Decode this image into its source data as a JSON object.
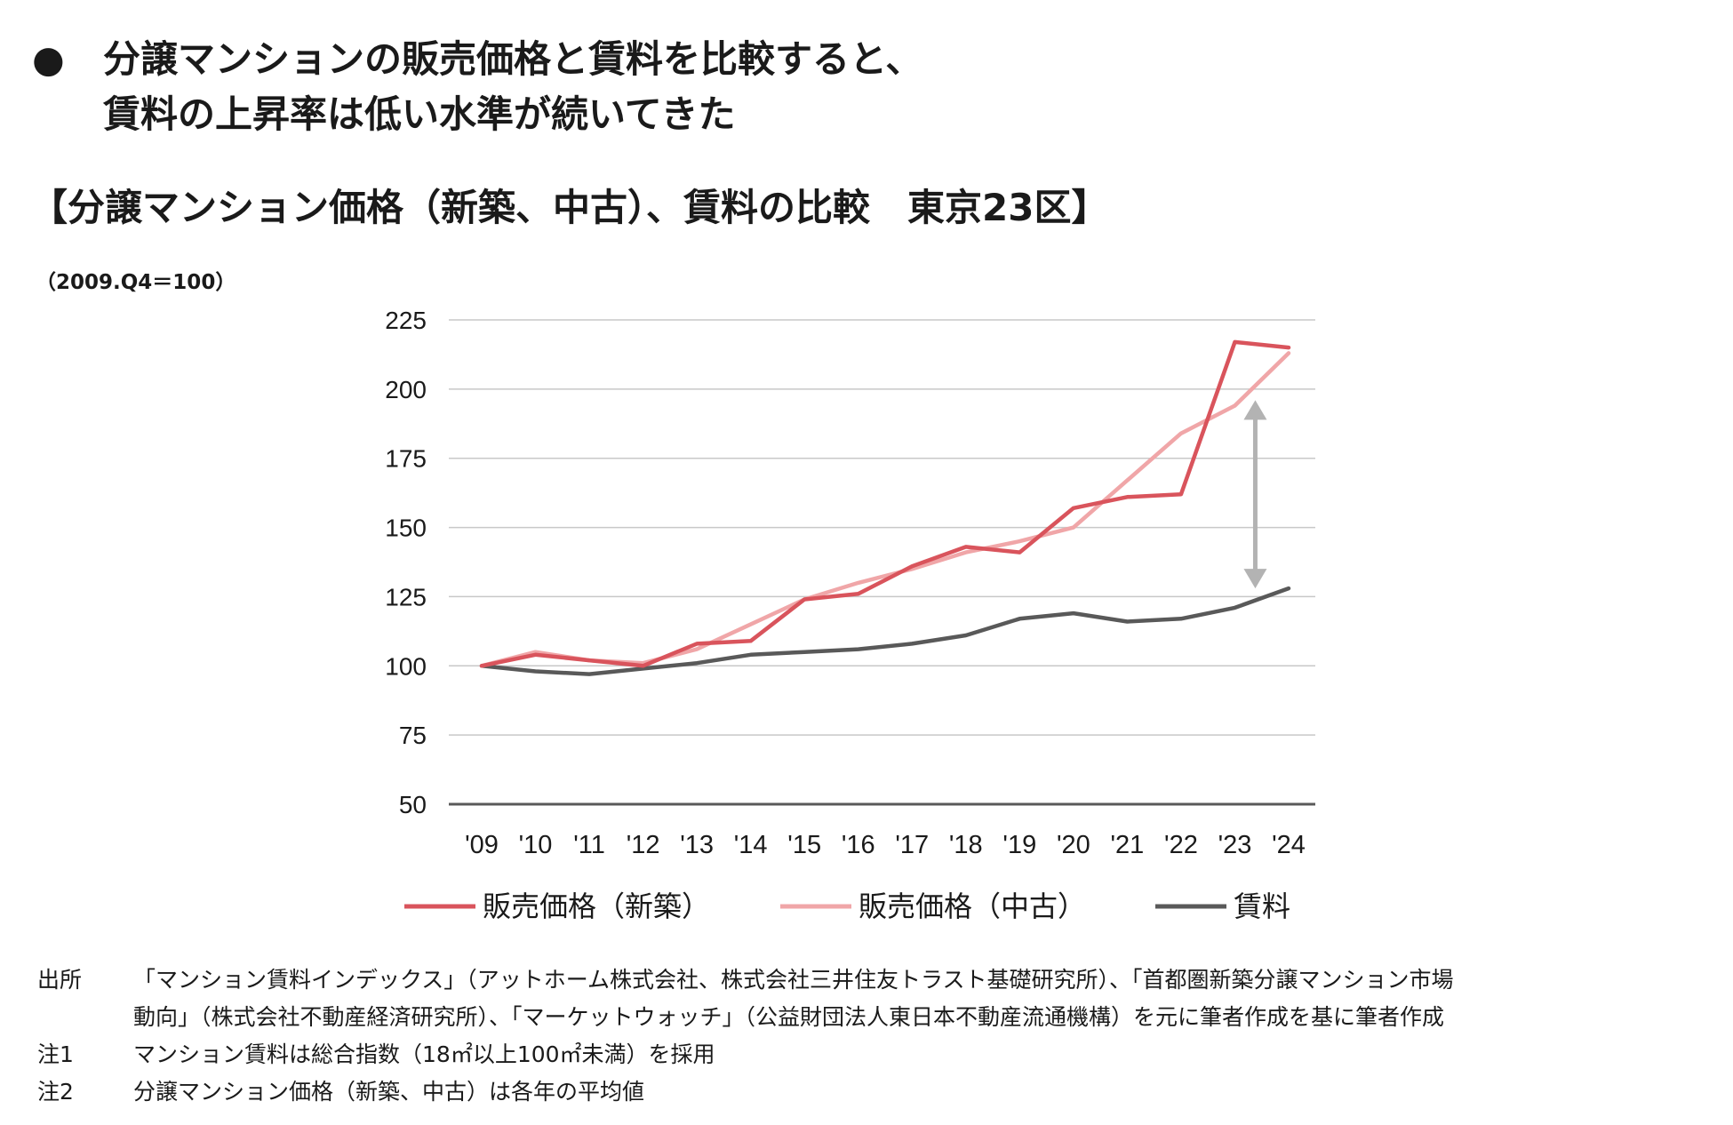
{
  "headline": {
    "bullet": "●",
    "lines": [
      "分譲マンションの販売価格と賃料を比較すると、",
      "賃料の上昇率は低い水準が続いてきた"
    ]
  },
  "chart_title": "【分譲マンション価格（新築、中古）、賃料の比較　東京23区】",
  "index_note": "（2009.Q4＝100）",
  "chart_data": {
    "type": "line",
    "title": "分譲マンション価格（新築、中古）、賃料の比較　東京23区",
    "xlabel": "",
    "ylabel": "（2009.Q4＝100）",
    "ylim": [
      50,
      225
    ],
    "yticks": [
      50,
      75,
      100,
      125,
      150,
      175,
      200,
      225
    ],
    "categories": [
      "'09",
      "'10",
      "'11",
      "'12",
      "'13",
      "'14",
      "'15",
      "'16",
      "'17",
      "'18",
      "'19",
      "'20",
      "'21",
      "'22",
      "'23",
      "'24"
    ],
    "grid": true,
    "legend_position": "bottom",
    "series": [
      {
        "name": "販売価格（新築）",
        "color": "#d9545c",
        "values": [
          100,
          104,
          102,
          100,
          108,
          109,
          124,
          126,
          136,
          143,
          141,
          157,
          161,
          162,
          217,
          215
        ]
      },
      {
        "name": "販売価格（中古）",
        "color": "#f0a6a8",
        "values": [
          100,
          105,
          102,
          101,
          106,
          115,
          124,
          130,
          135,
          141,
          145,
          150,
          167,
          184,
          194,
          213
        ]
      },
      {
        "name": "賃料",
        "color": "#595959",
        "values": [
          100,
          98,
          97,
          99,
          101,
          104,
          105,
          106,
          108,
          111,
          117,
          119,
          116,
          117,
          121,
          128
        ]
      }
    ],
    "annotations": [
      {
        "type": "double-arrow",
        "at_category": "'23",
        "from_value": 196,
        "to_value": 128,
        "color": "#b3b3b3"
      }
    ]
  },
  "footnotes": [
    {
      "label": "出所",
      "lines": [
        "「マンション賃料インデックス」（アットホーム株式会社、株式会社三井住友トラスト基礎研究所）、「首都圏新築分譲マンション市場",
        "動向」（株式会社不動産経済研究所）、「マーケットウォッチ」（公益財団法人東日本不動産流通機構）を元に筆者作成を基に筆者作成"
      ]
    },
    {
      "label": "注1",
      "lines": [
        "マンション賃料は総合指数（18㎡以上100㎡未満）を採用"
      ]
    },
    {
      "label": "注2",
      "lines": [
        "分譲マンション価格（新築、中古）は各年の平均値"
      ]
    }
  ]
}
